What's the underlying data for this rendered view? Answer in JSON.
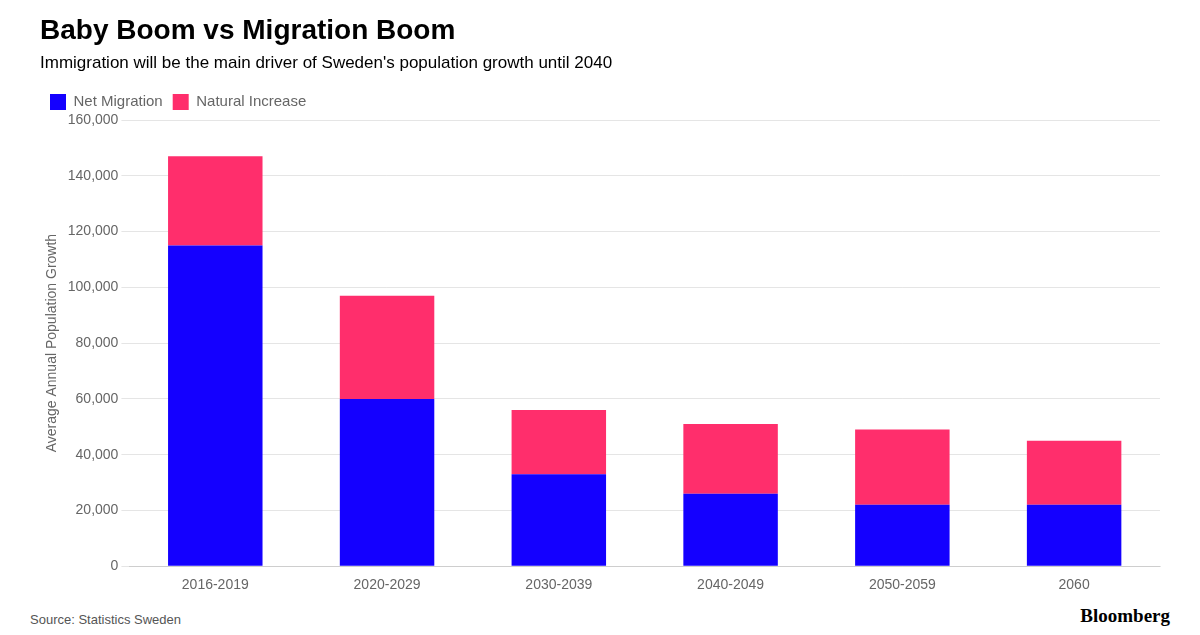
{
  "chart_data": {
    "type": "bar",
    "title": "Baby Boom vs Migration Boom",
    "subtitle": "Immigration will be the main driver of Sweden's population growth until 2040",
    "ylabel": "Average Annual Population Growth",
    "annotations": [
      "Source: Statistics Sweden",
      "Bloomberg"
    ],
    "categories": [
      "2016-2019",
      "2020-2029",
      "2030-2039",
      "2040-2049",
      "2050-2059",
      "2060"
    ],
    "series": [
      {
        "name": "Net Migration",
        "color": "#1400FF",
        "values": [
          115000,
          60000,
          33000,
          26000,
          22000,
          22000
        ]
      },
      {
        "name": "Natural Increase",
        "color": "#FF2E6C",
        "values": [
          32000,
          37000,
          23000,
          25000,
          27000,
          23000
        ]
      }
    ],
    "stacked": true,
    "ylim": [
      0,
      160000
    ],
    "yticks": [
      0,
      {
        "value": 20000,
        "label": "20,000"
      },
      {
        "value": 40000,
        "label": "40,000"
      },
      {
        "value": 60000,
        "label": "60,000"
      },
      {
        "value": 80000,
        "label": "80,000"
      },
      {
        "value": 100000,
        "label": "100,000"
      },
      {
        "value": 120000,
        "label": "120,000"
      },
      {
        "value": 140000,
        "label": "140,000"
      },
      {
        "value": 160000,
        "label": "160,000"
      }
    ],
    "grid": true,
    "legend": "upper left"
  }
}
